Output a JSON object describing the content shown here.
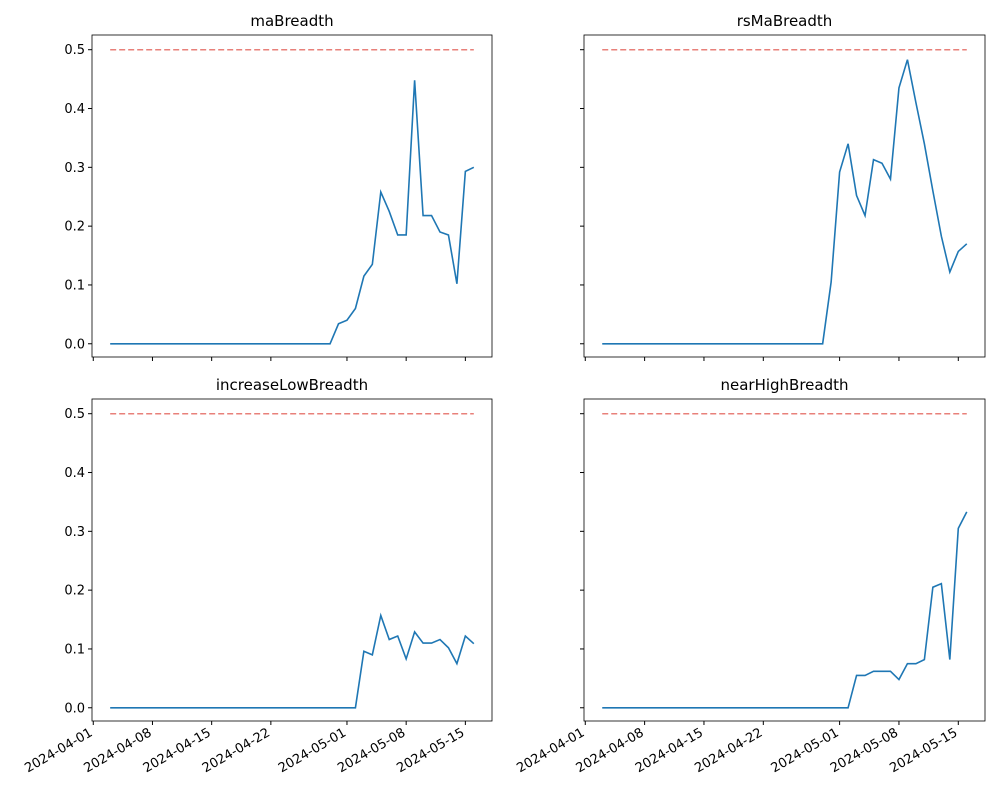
{
  "chart_data": [
    {
      "type": "line",
      "title": "maBreadth",
      "color": "#1f77b4",
      "x": [
        "2024-04-03",
        "2024-04-04",
        "2024-04-05",
        "2024-04-06",
        "2024-04-07",
        "2024-04-08",
        "2024-04-09",
        "2024-04-10",
        "2024-04-11",
        "2024-04-12",
        "2024-04-13",
        "2024-04-14",
        "2024-04-15",
        "2024-04-16",
        "2024-04-17",
        "2024-04-18",
        "2024-04-19",
        "2024-04-20",
        "2024-04-21",
        "2024-04-22",
        "2024-04-23",
        "2024-04-24",
        "2024-04-25",
        "2024-04-26",
        "2024-04-27",
        "2024-04-28",
        "2024-04-29",
        "2024-04-30",
        "2024-05-01",
        "2024-05-02",
        "2024-05-03",
        "2024-05-04",
        "2024-05-05",
        "2024-05-06",
        "2024-05-07",
        "2024-05-08",
        "2024-05-09",
        "2024-05-10",
        "2024-05-11",
        "2024-05-12",
        "2024-05-13",
        "2024-05-14",
        "2024-05-15",
        "2024-05-16"
      ],
      "values": [
        0,
        0,
        0,
        0,
        0,
        0,
        0,
        0,
        0,
        0,
        0,
        0,
        0,
        0,
        0,
        0,
        0,
        0,
        0,
        0,
        0,
        0,
        0,
        0,
        0,
        0,
        0,
        0.034,
        0.04,
        0.06,
        0.115,
        0.135,
        0.258,
        0.225,
        0.185,
        0.185,
        0.448,
        0.218,
        0.218,
        0.19,
        0.185,
        0.102,
        0.293,
        0.3
      ],
      "hline": {
        "value": 0.5,
        "color": "#e8807a"
      },
      "ylim": [
        -0.0225,
        0.525
      ],
      "yticks": [
        {
          "value": 0,
          "label": "0.0"
        },
        0.1,
        0.2,
        0.3,
        0.4,
        0.5
      ]
    },
    {
      "type": "line",
      "title": "rsMaBreadth",
      "color": "#1f77b4",
      "x": [
        "2024-04-03",
        "2024-04-04",
        "2024-04-05",
        "2024-04-06",
        "2024-04-07",
        "2024-04-08",
        "2024-04-09",
        "2024-04-10",
        "2024-04-11",
        "2024-04-12",
        "2024-04-13",
        "2024-04-14",
        "2024-04-15",
        "2024-04-16",
        "2024-04-17",
        "2024-04-18",
        "2024-04-19",
        "2024-04-20",
        "2024-04-21",
        "2024-04-22",
        "2024-04-23",
        "2024-04-24",
        "2024-04-25",
        "2024-04-26",
        "2024-04-27",
        "2024-04-28",
        "2024-04-29",
        "2024-04-30",
        "2024-05-01",
        "2024-05-02",
        "2024-05-03",
        "2024-05-04",
        "2024-05-05",
        "2024-05-06",
        "2024-05-07",
        "2024-05-08",
        "2024-05-09",
        "2024-05-10",
        "2024-05-11",
        "2024-05-12",
        "2024-05-13",
        "2024-05-14",
        "2024-05-15",
        "2024-05-16"
      ],
      "values": [
        0,
        0,
        0,
        0,
        0,
        0,
        0,
        0,
        0,
        0,
        0,
        0,
        0,
        0,
        0,
        0,
        0,
        0,
        0,
        0,
        0,
        0,
        0,
        0,
        0,
        0,
        0,
        0.105,
        0.292,
        0.34,
        0.252,
        0.218,
        0.313,
        0.307,
        0.28,
        0.435,
        0.483,
        0.41,
        0.34,
        0.26,
        0.183,
        0.122,
        0.157,
        0.17
      ],
      "hline": {
        "value": 0.5,
        "color": "#e8807a"
      }
    },
    {
      "type": "line",
      "title": "increaseLowBreadth",
      "color": "#1f77b4",
      "x": [
        "2024-04-03",
        "2024-04-04",
        "2024-04-05",
        "2024-04-06",
        "2024-04-07",
        "2024-04-08",
        "2024-04-09",
        "2024-04-10",
        "2024-04-11",
        "2024-04-12",
        "2024-04-13",
        "2024-04-14",
        "2024-04-15",
        "2024-04-16",
        "2024-04-17",
        "2024-04-18",
        "2024-04-19",
        "2024-04-20",
        "2024-04-21",
        "2024-04-22",
        "2024-04-23",
        "2024-04-24",
        "2024-04-25",
        "2024-04-26",
        "2024-04-27",
        "2024-04-28",
        "2024-04-29",
        "2024-04-30",
        "2024-05-01",
        "2024-05-02",
        "2024-05-03",
        "2024-05-04",
        "2024-05-05",
        "2024-05-06",
        "2024-05-07",
        "2024-05-08",
        "2024-05-09",
        "2024-05-10",
        "2024-05-11",
        "2024-05-12",
        "2024-05-13",
        "2024-05-14",
        "2024-05-15",
        "2024-05-16"
      ],
      "values": [
        0,
        0,
        0,
        0,
        0,
        0,
        0,
        0,
        0,
        0,
        0,
        0,
        0,
        0,
        0,
        0,
        0,
        0,
        0,
        0,
        0,
        0,
        0,
        0,
        0,
        0,
        0,
        0,
        0,
        0,
        0.096,
        0.09,
        0.157,
        0.116,
        0.122,
        0.083,
        0.129,
        0.11,
        0.11,
        0.116,
        0.102,
        0.075,
        0.122,
        0.109
      ],
      "hline": {
        "value": 0.5,
        "color": "#e8807a"
      },
      "ylim": [
        -0.0225,
        0.525
      ],
      "yticks": [
        {
          "value": 0,
          "label": "0.0"
        },
        0.1,
        0.2,
        0.3,
        0.4,
        0.5
      ],
      "xlim": [
        "2024-03-31T20:24:00Z",
        "2024-05-18T03:36:00Z"
      ],
      "xticks": [
        "2024-04-01",
        "2024-04-08",
        "2024-04-15",
        "2024-04-22",
        "2024-05-01",
        "2024-05-08",
        "2024-05-15"
      ]
    },
    {
      "type": "line",
      "title": "nearHighBreadth",
      "color": "#1f77b4",
      "x": [
        "2024-04-03",
        "2024-04-04",
        "2024-04-05",
        "2024-04-06",
        "2024-04-07",
        "2024-04-08",
        "2024-04-09",
        "2024-04-10",
        "2024-04-11",
        "2024-04-12",
        "2024-04-13",
        "2024-04-14",
        "2024-04-15",
        "2024-04-16",
        "2024-04-17",
        "2024-04-18",
        "2024-04-19",
        "2024-04-20",
        "2024-04-21",
        "2024-04-22",
        "2024-04-23",
        "2024-04-24",
        "2024-04-25",
        "2024-04-26",
        "2024-04-27",
        "2024-04-28",
        "2024-04-29",
        "2024-04-30",
        "2024-05-01",
        "2024-05-02",
        "2024-05-03",
        "2024-05-04",
        "2024-05-05",
        "2024-05-06",
        "2024-05-07",
        "2024-05-08",
        "2024-05-09",
        "2024-05-10",
        "2024-05-11",
        "2024-05-12",
        "2024-05-13",
        "2024-05-14",
        "2024-05-15",
        "2024-05-16"
      ],
      "values": [
        0,
        0,
        0,
        0,
        0,
        0,
        0,
        0,
        0,
        0,
        0,
        0,
        0,
        0,
        0,
        0,
        0,
        0,
        0,
        0,
        0,
        0,
        0,
        0,
        0,
        0,
        0,
        0,
        0,
        0,
        0.055,
        0.055,
        0.062,
        0.062,
        0.062,
        0.048,
        0.075,
        0.075,
        0.082,
        0.205,
        0.211,
        0.082,
        0.305,
        0.333
      ],
      "hline": {
        "value": 0.5,
        "color": "#e8807a"
      },
      "xlim": [
        "2024-03-31T20:24:00Z",
        "2024-05-18T03:36:00Z"
      ],
      "xticks": [
        "2024-04-01",
        "2024-04-08",
        "2024-04-15",
        "2024-04-22",
        "2024-05-01",
        "2024-05-08",
        "2024-05-15"
      ]
    }
  ]
}
